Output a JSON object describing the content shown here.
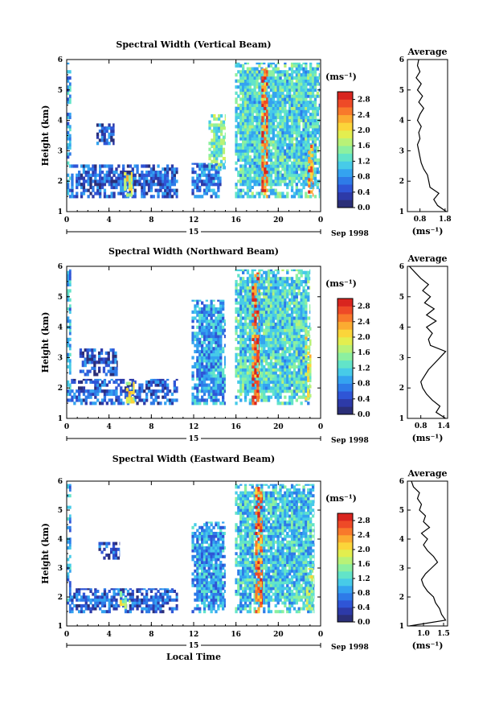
{
  "chart_data": [
    {
      "type": "heatmap",
      "title": "Spectral Width (Vertical Beam)",
      "ylabel": "Height (km)",
      "xlabel": "",
      "date_label": "15",
      "date_month": "Sep 1998",
      "x_ticks": [
        "0",
        "4",
        "8",
        "12",
        "16",
        "20",
        "0"
      ],
      "xlim": [
        0,
        24
      ],
      "ylim": [
        1,
        6
      ],
      "y_ticks": [
        "1",
        "2",
        "3",
        "4",
        "5",
        "6"
      ],
      "colorbar": {
        "label": "(ms⁻¹)",
        "ticks": [
          "0.0",
          "0.4",
          "0.8",
          "1.2",
          "1.6",
          "2.0",
          "2.4",
          "2.8"
        ],
        "range": [
          0,
          3.0
        ],
        "colors": [
          "#2b2f78",
          "#2d3aa8",
          "#2f55d6",
          "#2e7be8",
          "#34a3f0",
          "#47cbe8",
          "#62e4c9",
          "#8cf0a0",
          "#b9f277",
          "#e3ee4f",
          "#fbd53a",
          "#fbab31",
          "#f8792b",
          "#ee4a27",
          "#d9251f"
        ]
      },
      "blocks": [
        {
          "t": [
            0.0,
            0.4
          ],
          "h": [
            1.45,
            5.9
          ],
          "level": 0.9
        },
        {
          "t": [
            0.4,
            10.5
          ],
          "h": [
            1.45,
            2.55
          ],
          "level": 0.55
        },
        {
          "t": [
            2.8,
            4.5
          ],
          "h": [
            3.2,
            3.9
          ],
          "level": 0.5
        },
        {
          "t": [
            5.4,
            6.2
          ],
          "h": [
            1.5,
            2.3
          ],
          "level": 1.9
        },
        {
          "t": [
            11.8,
            14.6
          ],
          "h": [
            1.45,
            2.6
          ],
          "level": 0.7
        },
        {
          "t": [
            13.4,
            15.0
          ],
          "h": [
            2.4,
            4.2
          ],
          "level": 1.4
        },
        {
          "t": [
            15.9,
            23.9
          ],
          "h": [
            1.45,
            5.9
          ],
          "level": 1.2
        },
        {
          "t": [
            18.4,
            19.0
          ],
          "h": [
            1.45,
            5.7
          ],
          "level": 2.6
        },
        {
          "t": [
            22.8,
            23.3
          ],
          "h": [
            1.5,
            3.2
          ],
          "level": 2.4
        }
      ],
      "avg": {
        "title": "Average",
        "xlabel": "(ms⁻¹)",
        "x_ticks": [
          "0.8",
          "1.8"
        ],
        "xlim": [
          0.3,
          1.9
        ],
        "heights": [
          1.0,
          1.2,
          1.4,
          1.6,
          1.8,
          2.0,
          2.2,
          2.4,
          2.6,
          2.8,
          3.0,
          3.2,
          3.4,
          3.6,
          3.8,
          4.0,
          4.2,
          4.4,
          4.6,
          4.8,
          5.0,
          5.2,
          5.4,
          5.6,
          5.8,
          6.0
        ],
        "values": [
          1.85,
          1.5,
          1.35,
          1.55,
          1.2,
          1.15,
          1.1,
          0.95,
          0.85,
          0.8,
          0.75,
          0.7,
          0.8,
          0.75,
          0.85,
          0.7,
          0.8,
          0.95,
          0.75,
          0.9,
          0.7,
          0.85,
          0.65,
          0.8,
          0.7,
          0.75
        ]
      }
    },
    {
      "type": "heatmap",
      "title": "Spectral Width (Northward Beam)",
      "ylabel": "Height (km)",
      "xlabel": "",
      "date_label": "15",
      "date_month": "Sep 1998",
      "x_ticks": [
        "0",
        "4",
        "8",
        "12",
        "16",
        "20",
        "0"
      ],
      "xlim": [
        0,
        24
      ],
      "ylim": [
        1,
        6
      ],
      "y_ticks": [
        "1",
        "2",
        "3",
        "4",
        "5",
        "6"
      ],
      "colorbar": {
        "label": "(ms⁻¹)",
        "ticks": [
          "0.0",
          "0.4",
          "0.8",
          "1.2",
          "1.6",
          "2.0",
          "2.4",
          "2.8"
        ],
        "range": [
          0,
          3.0
        ],
        "colors": [
          "#2b2f78",
          "#2d3aa8",
          "#2f55d6",
          "#2e7be8",
          "#34a3f0",
          "#47cbe8",
          "#62e4c9",
          "#8cf0a0",
          "#b9f277",
          "#e3ee4f",
          "#fbd53a",
          "#fbab31",
          "#f8792b",
          "#ee4a27",
          "#d9251f"
        ]
      },
      "blocks": [
        {
          "t": [
            0.0,
            0.4
          ],
          "h": [
            1.45,
            5.9
          ],
          "level": 0.9
        },
        {
          "t": [
            0.4,
            10.5
          ],
          "h": [
            1.45,
            2.3
          ],
          "level": 0.55
        },
        {
          "t": [
            1.2,
            4.8
          ],
          "h": [
            2.4,
            3.3
          ],
          "level": 0.45
        },
        {
          "t": [
            5.6,
            6.4
          ],
          "h": [
            1.5,
            2.2
          ],
          "level": 1.8
        },
        {
          "t": [
            11.8,
            15.0
          ],
          "h": [
            1.45,
            4.9
          ],
          "level": 0.9
        },
        {
          "t": [
            15.9,
            23.0
          ],
          "h": [
            1.45,
            5.9
          ],
          "level": 1.2
        },
        {
          "t": [
            17.5,
            18.2
          ],
          "h": [
            1.45,
            5.8
          ],
          "level": 2.6
        },
        {
          "t": [
            22.5,
            23.1
          ],
          "h": [
            1.5,
            4.0
          ],
          "level": 1.8
        }
      ],
      "avg": {
        "title": "Average",
        "xlabel": "(ms⁻¹)",
        "x_ticks": [
          "0.8",
          "1.4"
        ],
        "xlim": [
          0.45,
          1.5
        ],
        "heights": [
          1.0,
          1.2,
          1.4,
          1.6,
          1.8,
          2.0,
          2.2,
          2.4,
          2.6,
          2.8,
          3.0,
          3.2,
          3.4,
          3.6,
          3.8,
          4.0,
          4.2,
          4.4,
          4.6,
          4.8,
          5.0,
          5.2,
          5.4,
          5.6,
          5.8,
          6.0
        ],
        "values": [
          1.45,
          1.2,
          1.3,
          1.1,
          0.95,
          0.85,
          0.8,
          0.9,
          1.0,
          1.15,
          1.3,
          1.45,
          1.05,
          1.0,
          1.1,
          0.95,
          1.2,
          0.95,
          1.15,
          0.9,
          1.05,
          0.85,
          1.0,
          0.8,
          0.65,
          0.5
        ]
      }
    },
    {
      "type": "heatmap",
      "title": "Spectral Width (Eastward Beam)",
      "ylabel": "Height (km)",
      "xlabel": "Local Time",
      "date_label": "15",
      "date_month": "Sep 1998",
      "x_ticks": [
        "0",
        "4",
        "8",
        "12",
        "16",
        "20",
        "0"
      ],
      "xlim": [
        0,
        24
      ],
      "ylim": [
        1,
        6
      ],
      "y_ticks": [
        "1",
        "2",
        "3",
        "4",
        "5",
        "6"
      ],
      "colorbar": {
        "label": "(ms⁻¹)",
        "ticks": [
          "0.0",
          "0.4",
          "0.8",
          "1.2",
          "1.6",
          "2.0",
          "2.4",
          "2.8"
        ],
        "range": [
          0,
          3.0
        ],
        "colors": [
          "#2b2f78",
          "#2d3aa8",
          "#2f55d6",
          "#2e7be8",
          "#34a3f0",
          "#47cbe8",
          "#62e4c9",
          "#8cf0a0",
          "#b9f277",
          "#e3ee4f",
          "#fbd53a",
          "#fbab31",
          "#f8792b",
          "#ee4a27",
          "#d9251f"
        ]
      },
      "blocks": [
        {
          "t": [
            0.0,
            0.4
          ],
          "h": [
            1.45,
            5.9
          ],
          "level": 0.9
        },
        {
          "t": [
            0.4,
            10.5
          ],
          "h": [
            1.45,
            2.3
          ],
          "level": 0.55
        },
        {
          "t": [
            3.0,
            5.0
          ],
          "h": [
            3.3,
            3.9
          ],
          "level": 0.5
        },
        {
          "t": [
            5.0,
            6.0
          ],
          "h": [
            1.6,
            2.2
          ],
          "level": 1.7
        },
        {
          "t": [
            11.8,
            15.0
          ],
          "h": [
            1.45,
            4.6
          ],
          "level": 0.85
        },
        {
          "t": [
            15.9,
            23.4
          ],
          "h": [
            1.45,
            5.9
          ],
          "level": 1.1
        },
        {
          "t": [
            17.8,
            18.5
          ],
          "h": [
            1.45,
            5.8
          ],
          "level": 2.5
        },
        {
          "t": [
            22.6,
            23.3
          ],
          "h": [
            1.45,
            3.0
          ],
          "level": 1.6
        }
      ],
      "avg": {
        "title": "Average",
        "xlabel": "(ms⁻¹)",
        "x_ticks": [
          "1.0",
          "1.5"
        ],
        "xlim": [
          0.6,
          1.6
        ],
        "heights": [
          1.0,
          1.2,
          1.4,
          1.6,
          1.8,
          2.0,
          2.2,
          2.4,
          2.6,
          2.8,
          3.0,
          3.2,
          3.4,
          3.6,
          3.8,
          4.0,
          4.2,
          4.4,
          4.6,
          4.8,
          5.0,
          5.2,
          5.4,
          5.6,
          5.8,
          6.0
        ],
        "values": [
          0.65,
          1.55,
          1.45,
          1.4,
          1.3,
          1.25,
          1.1,
          1.0,
          0.95,
          1.05,
          1.2,
          1.35,
          1.25,
          1.1,
          1.0,
          1.1,
          0.95,
          1.15,
          1.0,
          1.05,
          0.9,
          0.95,
          0.85,
          0.9,
          0.75,
          0.7
        ]
      }
    }
  ]
}
